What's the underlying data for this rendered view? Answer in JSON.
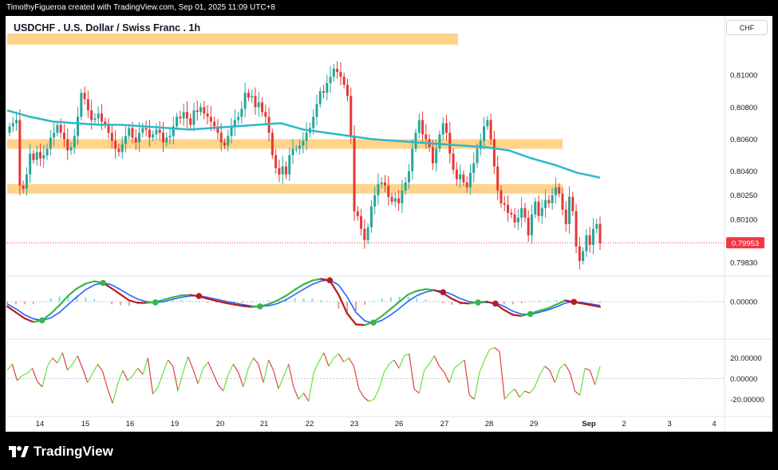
{
  "header": {
    "attribution": "TimothyFigueroa created with TradingView.com, Sep 01, 2025 11:09 UTC+8"
  },
  "symbol": {
    "title": "USDCHF . U.S. Dollar / Swiss Franc . 1h"
  },
  "currency_button": "CHF",
  "brand": {
    "name": "TradingView"
  },
  "colors": {
    "zone": "#ffd38a",
    "ma": "#2fb8c6",
    "up": "#26a69a",
    "down": "#e53935",
    "price_line": "#f23645",
    "macd_blue": "#2962ff",
    "macd_green": "#3ab54a",
    "macd_red": "#b71c1c",
    "osc_up": "#66e23a",
    "osc_down": "#e04040"
  },
  "chart_data": [
    {
      "type": "candlestick",
      "panel": "price",
      "title": "USDCHF . U.S. Dollar / Swiss Franc . 1h",
      "x_tick_labels": [
        "14",
        "15",
        "16",
        "19",
        "20",
        "21",
        "22",
        "23",
        "26",
        "27",
        "28",
        "29",
        "Sep",
        "2",
        "3",
        "4"
      ],
      "y_tick_labels": [
        "0.81000",
        "0.80800",
        "0.80600",
        "0.80400",
        "0.80250",
        "0.80100",
        "0.79830"
      ],
      "y_ticks": [
        0.81,
        0.808,
        0.806,
        0.804,
        0.8025,
        0.801,
        0.7983
      ],
      "ylim": [
        0.7975,
        0.8128
      ],
      "last_price": 0.79953,
      "last_price_label": "0.79953",
      "zones": [
        {
          "from": 0.8119,
          "to": 0.8126,
          "x_start": "13",
          "x_end": "27 late"
        },
        {
          "from": 0.8054,
          "to": 0.806,
          "x_start": "13",
          "x_end": "29 late"
        },
        {
          "from": 0.8026,
          "to": 0.8032,
          "x_start": "13",
          "x_end": "29 late"
        }
      ],
      "moving_average": {
        "color": "#2fb8c6",
        "values": [
          0.8078,
          0.8074,
          0.8071,
          0.807,
          0.8069,
          0.8069,
          0.8068,
          0.8067,
          0.8066,
          0.8067,
          0.8068,
          0.8069,
          0.807,
          0.8066,
          0.8064,
          0.8062,
          0.806,
          0.8059,
          0.8058,
          0.8057,
          0.8056,
          0.8055,
          0.8053,
          0.8048,
          0.8044,
          0.8039,
          0.8036
        ]
      },
      "closes": [
        0.8068,
        0.807,
        0.8072,
        0.8031,
        0.8029,
        0.8038,
        0.8051,
        0.8047,
        0.8052,
        0.8048,
        0.805,
        0.8054,
        0.8061,
        0.8064,
        0.8069,
        0.8064,
        0.806,
        0.8053,
        0.8055,
        0.8062,
        0.8074,
        0.8089,
        0.8085,
        0.8078,
        0.8072,
        0.8073,
        0.8076,
        0.8071,
        0.8069,
        0.8064,
        0.8059,
        0.8054,
        0.8052,
        0.8057,
        0.8062,
        0.8067,
        0.8061,
        0.8058,
        0.8064,
        0.8067,
        0.8066,
        0.8061,
        0.8063,
        0.8066,
        0.8064,
        0.8058,
        0.8061,
        0.8062,
        0.8068,
        0.8074,
        0.8073,
        0.8077,
        0.8073,
        0.8069,
        0.8078,
        0.8077,
        0.808,
        0.8076,
        0.8074,
        0.8071,
        0.8068,
        0.8064,
        0.8058,
        0.8056,
        0.8062,
        0.8068,
        0.8072,
        0.8074,
        0.8079,
        0.8089,
        0.8086,
        0.8087,
        0.808,
        0.8083,
        0.8077,
        0.8074,
        0.8064,
        0.805,
        0.8042,
        0.8038,
        0.8043,
        0.8038,
        0.805,
        0.8054,
        0.8054,
        0.8056,
        0.8059,
        0.8064,
        0.8067,
        0.8074,
        0.8082,
        0.809,
        0.8089,
        0.8095,
        0.8099,
        0.8104,
        0.8102,
        0.8099,
        0.8094,
        0.8087,
        0.8062,
        0.8015,
        0.8012,
        0.8004,
        0.7997,
        0.8005,
        0.8018,
        0.8025,
        0.8032,
        0.8033,
        0.8031,
        0.8024,
        0.8021,
        0.8023,
        0.802,
        0.8028,
        0.8033,
        0.804,
        0.8054,
        0.8064,
        0.8072,
        0.8063,
        0.806,
        0.8055,
        0.8045,
        0.8054,
        0.8063,
        0.807,
        0.8064,
        0.8051,
        0.8041,
        0.8035,
        0.8038,
        0.8033,
        0.803,
        0.8039,
        0.8045,
        0.8054,
        0.8059,
        0.8068,
        0.8072,
        0.806,
        0.8043,
        0.8028,
        0.802,
        0.8019,
        0.8014,
        0.8013,
        0.8008,
        0.8011,
        0.8017,
        0.8011,
        0.8,
        0.8013,
        0.8021,
        0.8012,
        0.8017,
        0.8022,
        0.802,
        0.8025,
        0.803,
        0.8026,
        0.8016,
        0.8007,
        0.8024,
        0.8015,
        0.7993,
        0.7984,
        0.799,
        0.8,
        0.7994,
        0.8004,
        0.8007,
        0.7995
      ]
    },
    {
      "type": "line",
      "panel": "macd",
      "y_tick_labels": [
        "0.00000"
      ],
      "series": [
        {
          "values": [
            -0.2,
            -0.45,
            -0.7,
            -0.85,
            -0.78,
            -0.5,
            -0.15,
            0.25,
            0.55,
            0.75,
            0.85,
            0.78,
            0.55,
            0.3,
            0.05,
            -0.05,
            -0.05,
            -0.02,
            0.08,
            0.18,
            0.26,
            0.28,
            0.22,
            0.12,
            0.03,
            -0.05,
            -0.12,
            -0.18,
            -0.22,
            -0.2,
            -0.1,
            0.05,
            0.25,
            0.5,
            0.72,
            0.88,
            0.95,
            0.88,
            0.3,
            -0.5,
            -0.95,
            -0.98,
            -0.85,
            -0.6,
            -0.3,
            0.0,
            0.3,
            0.45,
            0.52,
            0.48,
            0.35,
            0.12,
            -0.05,
            -0.08,
            -0.02,
            0.0,
            -0.1,
            -0.35,
            -0.55,
            -0.6,
            -0.5,
            -0.38,
            -0.28,
            -0.12,
            0.05,
            -0.02,
            -0.08,
            -0.15,
            -0.22
          ]
        },
        {
          "values": [
            -0.1,
            -0.3,
            -0.55,
            -0.72,
            -0.78,
            -0.68,
            -0.45,
            -0.12,
            0.2,
            0.5,
            0.7,
            0.78,
            0.7,
            0.5,
            0.28,
            0.1,
            0.0,
            -0.04,
            0.0,
            0.1,
            0.18,
            0.24,
            0.25,
            0.18,
            0.1,
            0.02,
            -0.05,
            -0.12,
            -0.18,
            -0.2,
            -0.17,
            -0.08,
            0.08,
            0.3,
            0.52,
            0.72,
            0.86,
            0.9,
            0.7,
            0.2,
            -0.45,
            -0.8,
            -0.9,
            -0.78,
            -0.55,
            -0.28,
            0.02,
            0.25,
            0.4,
            0.47,
            0.44,
            0.3,
            0.12,
            0.0,
            -0.05,
            -0.03,
            -0.06,
            -0.2,
            -0.4,
            -0.52,
            -0.53,
            -0.45,
            -0.35,
            -0.22,
            -0.06,
            0.0,
            -0.04,
            -0.1,
            -0.16
          ]
        }
      ]
    },
    {
      "type": "line",
      "panel": "oscillator",
      "y_tick_labels": [
        "20.00000",
        "0.00000",
        "-20.00000"
      ],
      "ylim": [
        -35,
        35
      ],
      "values": [
        8,
        14,
        -2,
        3,
        5,
        10,
        -3,
        -8,
        12,
        20,
        15,
        25,
        8,
        14,
        22,
        10,
        -4,
        5,
        14,
        7,
        -10,
        -24,
        -5,
        8,
        -2,
        3,
        10,
        4,
        20,
        -15,
        -8,
        5,
        18,
        12,
        -12,
        6,
        21,
        9,
        -5,
        10,
        16,
        5,
        -6,
        -12,
        4,
        14,
        6,
        -8,
        10,
        20,
        14,
        -4,
        18,
        8,
        -10,
        2,
        14,
        -8,
        -20,
        -14,
        -22,
        6,
        16,
        25,
        12,
        20,
        24,
        16,
        20,
        12,
        -10,
        -18,
        -22,
        -20,
        -10,
        6,
        14,
        18,
        10,
        22,
        24,
        -10,
        -14,
        8,
        14,
        22,
        12,
        6,
        -4,
        10,
        14,
        18,
        -16,
        -20,
        6,
        18,
        28,
        30,
        26,
        -20,
        -14,
        -10,
        -18,
        -12,
        -14,
        -8,
        4,
        12,
        8,
        -4,
        10,
        14,
        6,
        -12,
        -16,
        10,
        8,
        -6,
        12
      ]
    }
  ]
}
